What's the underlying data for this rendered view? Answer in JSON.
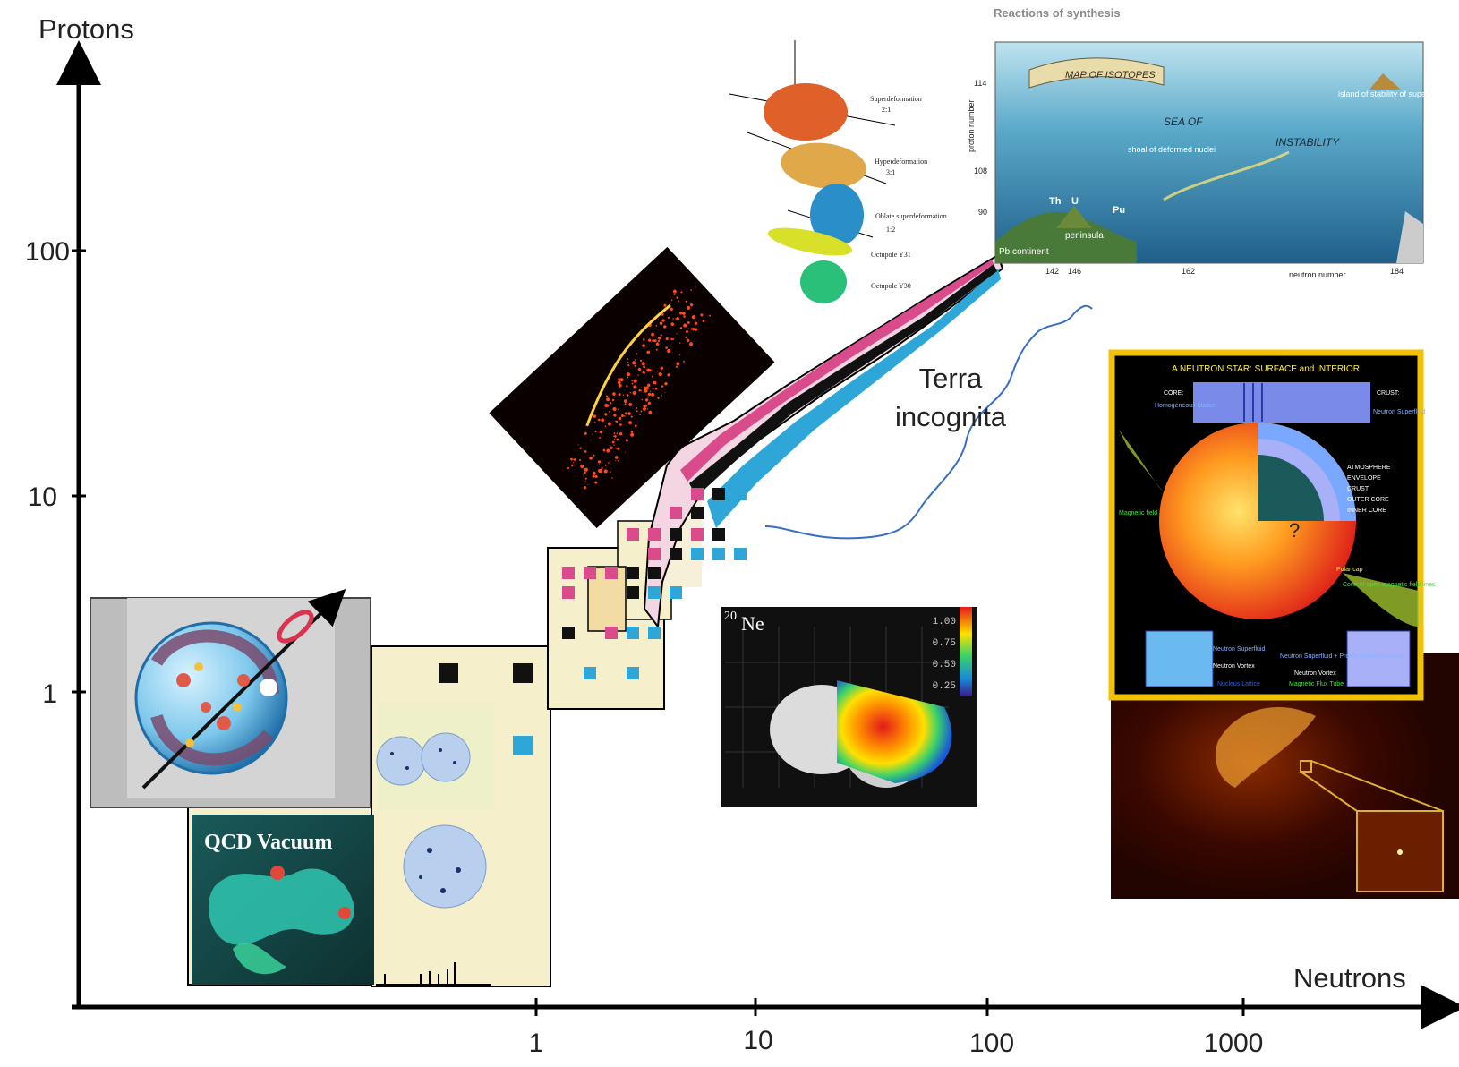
{
  "axes": {
    "y_title": "Protons",
    "x_title": "Neutrons",
    "y_ticks": [
      "100",
      "10",
      "1"
    ],
    "x_ticks": [
      "1",
      "10",
      "100",
      "1000"
    ],
    "scale": "log"
  },
  "annotation": {
    "terra_line1": "Terra",
    "terra_line2": "incognita"
  },
  "insets": {
    "qcd": "QCD Vacuum",
    "ne_label_sup": "20",
    "ne_label": "Ne",
    "ne_scale": [
      "1.00",
      "0.75",
      "0.50",
      "0.25"
    ],
    "synthesis": {
      "caption": "Reactions of synthesis",
      "banner": "MAP OF ISOTOPES",
      "sea_of": "SEA OF",
      "instability": "INSTABILITY",
      "shoal": "shoal of deformed nuclei",
      "island": "island of stability of superheavy nuclei",
      "peninsula": "peninsula",
      "continent": "Pb continent",
      "th": "Th",
      "u": "U",
      "pu": "Pu",
      "y_axis": "proton number",
      "x_axis": "neutron number",
      "y_ticks": [
        "114",
        "108",
        "90"
      ],
      "x_ticks": [
        "142",
        "146",
        "162",
        "184"
      ]
    },
    "deformation": {
      "super": "Superdeformation",
      "super_ratio": "2:1",
      "hyper": "Hyperdeformation",
      "hyper_ratio": "3:1",
      "oblate": "Oblate superdeformation",
      "oblate_ratio": "1:2",
      "oct31": "Octupole Y31",
      "oct30": "Octupole Y30"
    },
    "neutron_star": {
      "title": "A NEUTRON STAR: SURFACE and INTERIOR",
      "core": "CORE:",
      "core_desc": "Homogeneous Matter",
      "crust": "CRUST:",
      "crust_desc": "Neutron Superfluid",
      "layers": [
        "ATMOSPHERE",
        "ENVELOPE",
        "CRUST",
        "OUTER CORE",
        "INNER CORE"
      ],
      "magnetic": "Magnetic field",
      "polar": "Polar cap",
      "cone": "Cone of open magnetic field lines",
      "box1": [
        "Neutron Superfluid",
        "Neutron Vortex",
        "Nucleus Lattice"
      ],
      "box2": [
        "Neutron Superfluid + Proton Superconductor",
        "Neutron Vortex",
        "Magnetic Flux Tube"
      ],
      "question": "?"
    }
  },
  "colors": {
    "pink": "#d94b8a",
    "cyan": "#2fa6d8",
    "black": "#111111",
    "cream": "#f5efcc",
    "drip_line": "#3a6ec2",
    "star_frame": "#f2c200"
  }
}
